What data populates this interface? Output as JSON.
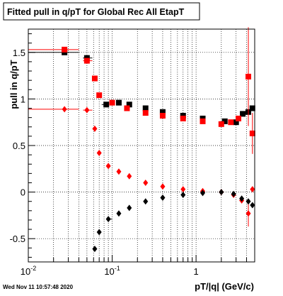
{
  "title": "Fitted pull in q/pT for Global Rec All EtapT",
  "footer_timestamp": "Wed Nov 11 10:57:48 2020",
  "chart_data": {
    "type": "scatter",
    "title": "Fitted pull in q/pT for Global Rec All EtapT",
    "xlabel": "pT/|q| (GeV/c)",
    "ylabel": "pull in q/pT",
    "x_scale": "log",
    "xlim": [
      0.01,
      5.0
    ],
    "ylim": [
      -0.75,
      1.75
    ],
    "grid": true,
    "x_major_ticks": [
      {
        "v": 0.01,
        "label": "10",
        "exp": "-2"
      },
      {
        "v": 0.1,
        "label": "10",
        "exp": "-1"
      },
      {
        "v": 1,
        "label": "1",
        "exp": ""
      }
    ],
    "y_ticks": [
      {
        "v": -0.5,
        "label": "-0.5"
      },
      {
        "v": 0,
        "label": "0"
      },
      {
        "v": 0.5,
        "label": "0.5"
      },
      {
        "v": 1,
        "label": "1"
      },
      {
        "v": 1.5,
        "label": "1.5"
      }
    ],
    "series": [
      {
        "marker": "square",
        "color": "#000000",
        "points": [
          [
            0.027,
            1.5
          ],
          [
            0.05,
            1.44
          ],
          [
            0.085,
            0.94
          ],
          [
            0.12,
            0.96
          ],
          [
            0.16,
            0.94
          ],
          [
            0.25,
            0.9
          ],
          [
            0.4,
            0.86
          ],
          [
            0.7,
            0.82
          ],
          [
            1.2,
            0.79
          ],
          [
            2.2,
            0.76
          ],
          [
            3.0,
            0.75
          ],
          [
            3.6,
            0.84
          ],
          [
            4.2,
            0.86
          ],
          [
            4.7,
            0.9
          ]
        ],
        "errors": [
          [
            0.01,
            0.04,
            0.02,
            0.0
          ],
          [
            0.045,
            0.058,
            0.02,
            0.0
          ],
          [
            0.075,
            0.09,
            0.0,
            0.0
          ],
          [
            0.0,
            0.0,
            0.0,
            0.0
          ],
          [
            0.0,
            0.0,
            0.0,
            0.0
          ],
          [
            0.0,
            0.0,
            0.0,
            0.0
          ],
          [
            0.0,
            0.0,
            0.0,
            0.0
          ],
          [
            0.0,
            0.0,
            0.0,
            0.0
          ],
          [
            0.0,
            0.0,
            0.0,
            0.0
          ],
          [
            0.0,
            0.0,
            0.0,
            0.0
          ],
          [
            0.0,
            0.0,
            0.0,
            0.0
          ],
          [
            0.0,
            0.0,
            0.0,
            0.0
          ],
          [
            0.0,
            0.0,
            0.0,
            0.0
          ],
          [
            0.0,
            0.0,
            0.0,
            0.0
          ]
        ]
      },
      {
        "marker": "square",
        "color": "#ff0000",
        "points": [
          [
            0.027,
            1.53
          ],
          [
            0.05,
            1.41
          ],
          [
            0.062,
            1.22
          ],
          [
            0.07,
            1.04
          ],
          [
            0.1,
            0.96
          ],
          [
            0.15,
            0.9
          ],
          [
            0.25,
            0.85
          ],
          [
            0.4,
            0.82
          ],
          [
            0.7,
            0.79
          ],
          [
            1.2,
            0.76
          ],
          [
            2.0,
            0.73
          ],
          [
            2.6,
            0.75
          ],
          [
            3.2,
            0.79
          ],
          [
            4.2,
            1.24
          ],
          [
            4.7,
            0.63
          ]
        ],
        "errors": [
          [
            0.01,
            0.04,
            0.02,
            0.0
          ],
          [
            0.045,
            0.058,
            0.02,
            0.0
          ],
          [
            0.0,
            0.0,
            0.0,
            0.0
          ],
          [
            0.0,
            0.0,
            0.0,
            0.0
          ],
          [
            0.0,
            0.0,
            0.0,
            0.0
          ],
          [
            0.0,
            0.0,
            0.0,
            0.0
          ],
          [
            0.0,
            0.0,
            0.0,
            0.0
          ],
          [
            0.0,
            0.0,
            0.0,
            0.0
          ],
          [
            0.0,
            0.0,
            0.0,
            0.0
          ],
          [
            0.0,
            0.0,
            0.0,
            0.0
          ],
          [
            0.0,
            0.0,
            0.0,
            0.0
          ],
          [
            0.0,
            0.0,
            0.0,
            0.0
          ],
          [
            0.0,
            0.0,
            0.0,
            0.0
          ],
          [
            0.0,
            0.0,
            0.53,
            0.0
          ],
          [
            0.0,
            0.0,
            0.22,
            0.0
          ]
        ]
      },
      {
        "marker": "diamond",
        "color": "#ff0000",
        "points": [
          [
            0.027,
            0.89
          ],
          [
            0.05,
            0.88
          ],
          [
            0.062,
            0.68
          ],
          [
            0.07,
            0.42
          ],
          [
            0.09,
            0.28
          ],
          [
            0.12,
            0.22
          ],
          [
            0.16,
            0.17
          ],
          [
            0.25,
            0.1
          ],
          [
            0.4,
            0.06
          ],
          [
            0.7,
            0.03
          ],
          [
            1.2,
            0.01
          ],
          [
            2.0,
            0.0
          ],
          [
            2.8,
            -0.03
          ],
          [
            3.5,
            -0.09
          ],
          [
            4.2,
            -0.23
          ],
          [
            4.7,
            0.03
          ]
        ],
        "errors": [
          [
            0.01,
            0.04,
            0.0,
            0.0
          ],
          [
            0.045,
            0.058,
            0.0,
            0.0
          ],
          [
            0.0,
            0.0,
            0.0,
            0.0
          ],
          [
            0.0,
            0.0,
            0.0,
            0.0
          ],
          [
            0.0,
            0.0,
            0.0,
            0.0
          ],
          [
            0.0,
            0.0,
            0.0,
            0.0
          ],
          [
            0.0,
            0.0,
            0.0,
            0.0
          ],
          [
            0.0,
            0.0,
            0.0,
            0.0
          ],
          [
            0.0,
            0.0,
            0.0,
            0.0
          ],
          [
            0.0,
            0.0,
            0.0,
            0.0
          ],
          [
            0.0,
            0.0,
            0.0,
            0.0
          ],
          [
            0.0,
            0.0,
            0.0,
            0.0
          ],
          [
            0.0,
            0.0,
            0.0,
            0.0
          ],
          [
            0.0,
            0.0,
            0.0,
            0.0
          ],
          [
            0.0,
            0.0,
            0.14,
            0.0
          ],
          [
            0.0,
            0.0,
            0.0,
            0.0
          ]
        ]
      },
      {
        "marker": "diamond",
        "color": "#000000",
        "points": [
          [
            0.062,
            -0.61
          ],
          [
            0.07,
            -0.43
          ],
          [
            0.09,
            -0.29
          ],
          [
            0.12,
            -0.23
          ],
          [
            0.16,
            -0.17
          ],
          [
            0.25,
            -0.1
          ],
          [
            0.4,
            -0.06
          ],
          [
            0.7,
            -0.03
          ],
          [
            1.2,
            -0.01
          ],
          [
            2.0,
            0.0
          ],
          [
            2.8,
            -0.02
          ],
          [
            3.5,
            -0.07
          ],
          [
            4.2,
            -0.1
          ],
          [
            4.7,
            -0.14
          ]
        ],
        "errors": [
          [
            0.0,
            0.0,
            0.0,
            0.0
          ],
          [
            0.0,
            0.0,
            0.0,
            0.0
          ],
          [
            0.085,
            0.1,
            0.0,
            0.0
          ],
          [
            0.0,
            0.0,
            0.0,
            0.0
          ],
          [
            0.0,
            0.0,
            0.0,
            0.0
          ],
          [
            0.0,
            0.0,
            0.0,
            0.0
          ],
          [
            0.0,
            0.0,
            0.0,
            0.0
          ],
          [
            0.0,
            0.0,
            0.0,
            0.0
          ],
          [
            0.0,
            0.0,
            0.0,
            0.0
          ],
          [
            0.0,
            0.0,
            0.0,
            0.0
          ],
          [
            0.0,
            0.0,
            0.0,
            0.0
          ],
          [
            0.0,
            0.0,
            0.0,
            0.0
          ],
          [
            0.0,
            0.0,
            0.0,
            0.0
          ],
          [
            0.0,
            0.0,
            0.0,
            0.0
          ]
        ]
      }
    ]
  }
}
